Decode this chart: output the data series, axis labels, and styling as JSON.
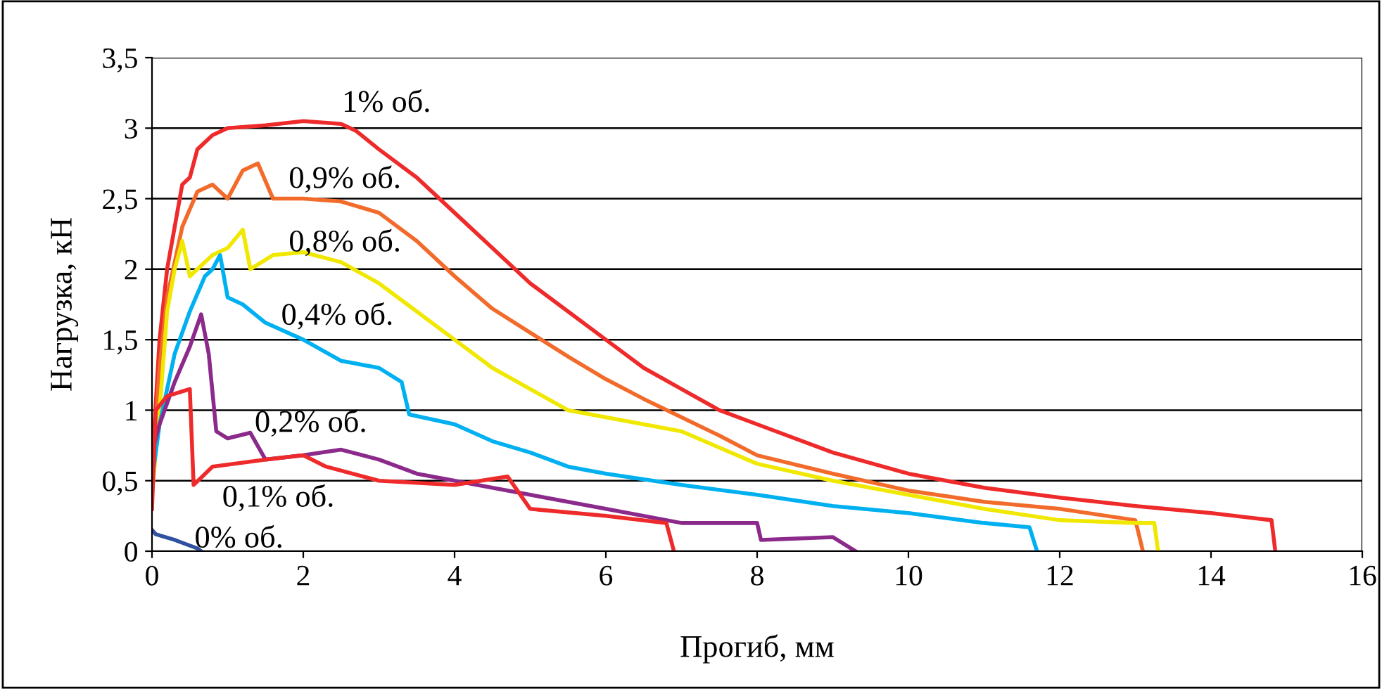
{
  "chart_data": {
    "type": "line",
    "xlabel": "Прогиб, мм",
    "ylabel": "Нагрузка, кН",
    "xlim": [
      0,
      16
    ],
    "xticks": [
      0,
      2,
      4,
      6,
      8,
      10,
      12,
      14,
      16
    ],
    "ylim": [
      0,
      3.5
    ],
    "yticks": [
      {
        "value": 0,
        "label": "0"
      },
      {
        "value": 0.5,
        "label": "0,5"
      },
      {
        "value": 1,
        "label": "1"
      },
      {
        "value": 1.5,
        "label": "1,5"
      },
      {
        "value": 2,
        "label": "2"
      },
      {
        "value": 2.5,
        "label": "2,5"
      },
      {
        "value": 3,
        "label": "3"
      },
      {
        "value": 3.5,
        "label": "3,5"
      }
    ],
    "grid": "y",
    "legend": false,
    "series": [
      {
        "name": "1% об.",
        "color": "#ee2a2a",
        "x": [
          0,
          0.1,
          0.2,
          0.3,
          0.4,
          0.5,
          0.6,
          0.8,
          1.0,
          1.5,
          2.0,
          2.5,
          2.7,
          3.0,
          3.5,
          4,
          4.5,
          5,
          5.5,
          6,
          6.5,
          7,
          7.5,
          8,
          9,
          10,
          11,
          12,
          13,
          14,
          14.8,
          14.85
        ],
        "values": [
          0.6,
          1.5,
          2.0,
          2.3,
          2.6,
          2.65,
          2.85,
          2.95,
          3.0,
          3.02,
          3.05,
          3.03,
          2.98,
          2.85,
          2.65,
          2.4,
          2.15,
          1.9,
          1.7,
          1.5,
          1.3,
          1.15,
          1.0,
          0.9,
          0.7,
          0.55,
          0.45,
          0.38,
          0.32,
          0.27,
          0.22,
          0
        ]
      },
      {
        "name": "0,9% об.",
        "color": "#f26b2a",
        "x": [
          0,
          0.1,
          0.2,
          0.4,
          0.6,
          0.8,
          1.0,
          1.2,
          1.4,
          1.6,
          2,
          2.5,
          3,
          3.5,
          4,
          4.5,
          5,
          5.5,
          6,
          6.5,
          7,
          7.5,
          8,
          9,
          10,
          11,
          12,
          13,
          13.1
        ],
        "values": [
          0.5,
          1.3,
          1.8,
          2.3,
          2.55,
          2.6,
          2.5,
          2.7,
          2.75,
          2.5,
          2.5,
          2.48,
          2.4,
          2.2,
          1.95,
          1.72,
          1.55,
          1.38,
          1.22,
          1.08,
          0.95,
          0.82,
          0.68,
          0.55,
          0.43,
          0.35,
          0.3,
          0.22,
          0
        ]
      },
      {
        "name": "0,8% об.",
        "color": "#f0e800",
        "x": [
          0,
          0.1,
          0.2,
          0.3,
          0.4,
          0.5,
          0.8,
          1.0,
          1.2,
          1.3,
          1.6,
          2,
          2.5,
          3,
          3.5,
          4,
          4.5,
          5,
          5.5,
          6,
          7,
          8,
          9,
          10,
          11,
          12,
          13,
          13.25,
          13.3
        ],
        "values": [
          0.4,
          1.0,
          1.7,
          2.0,
          2.2,
          1.95,
          2.1,
          2.15,
          2.28,
          2.0,
          2.1,
          2.12,
          2.05,
          1.9,
          1.7,
          1.5,
          1.3,
          1.15,
          1.0,
          0.95,
          0.85,
          0.62,
          0.5,
          0.4,
          0.3,
          0.22,
          0.2,
          0.2,
          0
        ]
      },
      {
        "name": "0,4% об.",
        "color": "#00b0f0",
        "x": [
          0,
          0.1,
          0.3,
          0.5,
          0.7,
          0.8,
          0.9,
          1.0,
          1.2,
          1.5,
          2,
          2.5,
          3,
          3.3,
          3.4,
          4,
          4.5,
          5,
          5.5,
          6,
          7,
          8,
          9,
          10,
          11,
          11.6,
          11.7
        ],
        "values": [
          0.5,
          0.9,
          1.4,
          1.7,
          1.95,
          2.0,
          2.1,
          1.8,
          1.75,
          1.62,
          1.5,
          1.35,
          1.3,
          1.2,
          0.97,
          0.9,
          0.78,
          0.7,
          0.6,
          0.55,
          0.47,
          0.4,
          0.32,
          0.27,
          0.2,
          0.17,
          0
        ]
      },
      {
        "name": "0,2% об.",
        "color": "#8b2a8b",
        "x": [
          0,
          0.1,
          0.3,
          0.5,
          0.65,
          0.75,
          0.85,
          1.0,
          1.3,
          1.5,
          2,
          2.5,
          3,
          3.5,
          4,
          5,
          6,
          7,
          8,
          8.05,
          9,
          9.3
        ],
        "values": [
          0.7,
          0.9,
          1.2,
          1.45,
          1.68,
          1.4,
          0.85,
          0.8,
          0.84,
          0.65,
          0.68,
          0.72,
          0.65,
          0.55,
          0.5,
          0.4,
          0.3,
          0.2,
          0.2,
          0.08,
          0.1,
          0
        ]
      },
      {
        "name": "0,1% об.",
        "color": "#ee2a2a",
        "x": [
          0,
          0.05,
          0.2,
          0.5,
          0.55,
          0.8,
          1.5,
          2,
          2.3,
          3,
          4,
          4.7,
          5.0,
          6,
          6.8,
          6.9
        ],
        "values": [
          0.3,
          1.0,
          1.1,
          1.15,
          0.47,
          0.6,
          0.65,
          0.68,
          0.6,
          0.5,
          0.47,
          0.53,
          0.3,
          0.25,
          0.2,
          0
        ]
      },
      {
        "name": "0% об.",
        "color": "#3050a0",
        "x": [
          0,
          0.05,
          0.3,
          0.6,
          0.65
        ],
        "values": [
          0.15,
          0.12,
          0.08,
          0.02,
          0
        ]
      }
    ]
  }
}
